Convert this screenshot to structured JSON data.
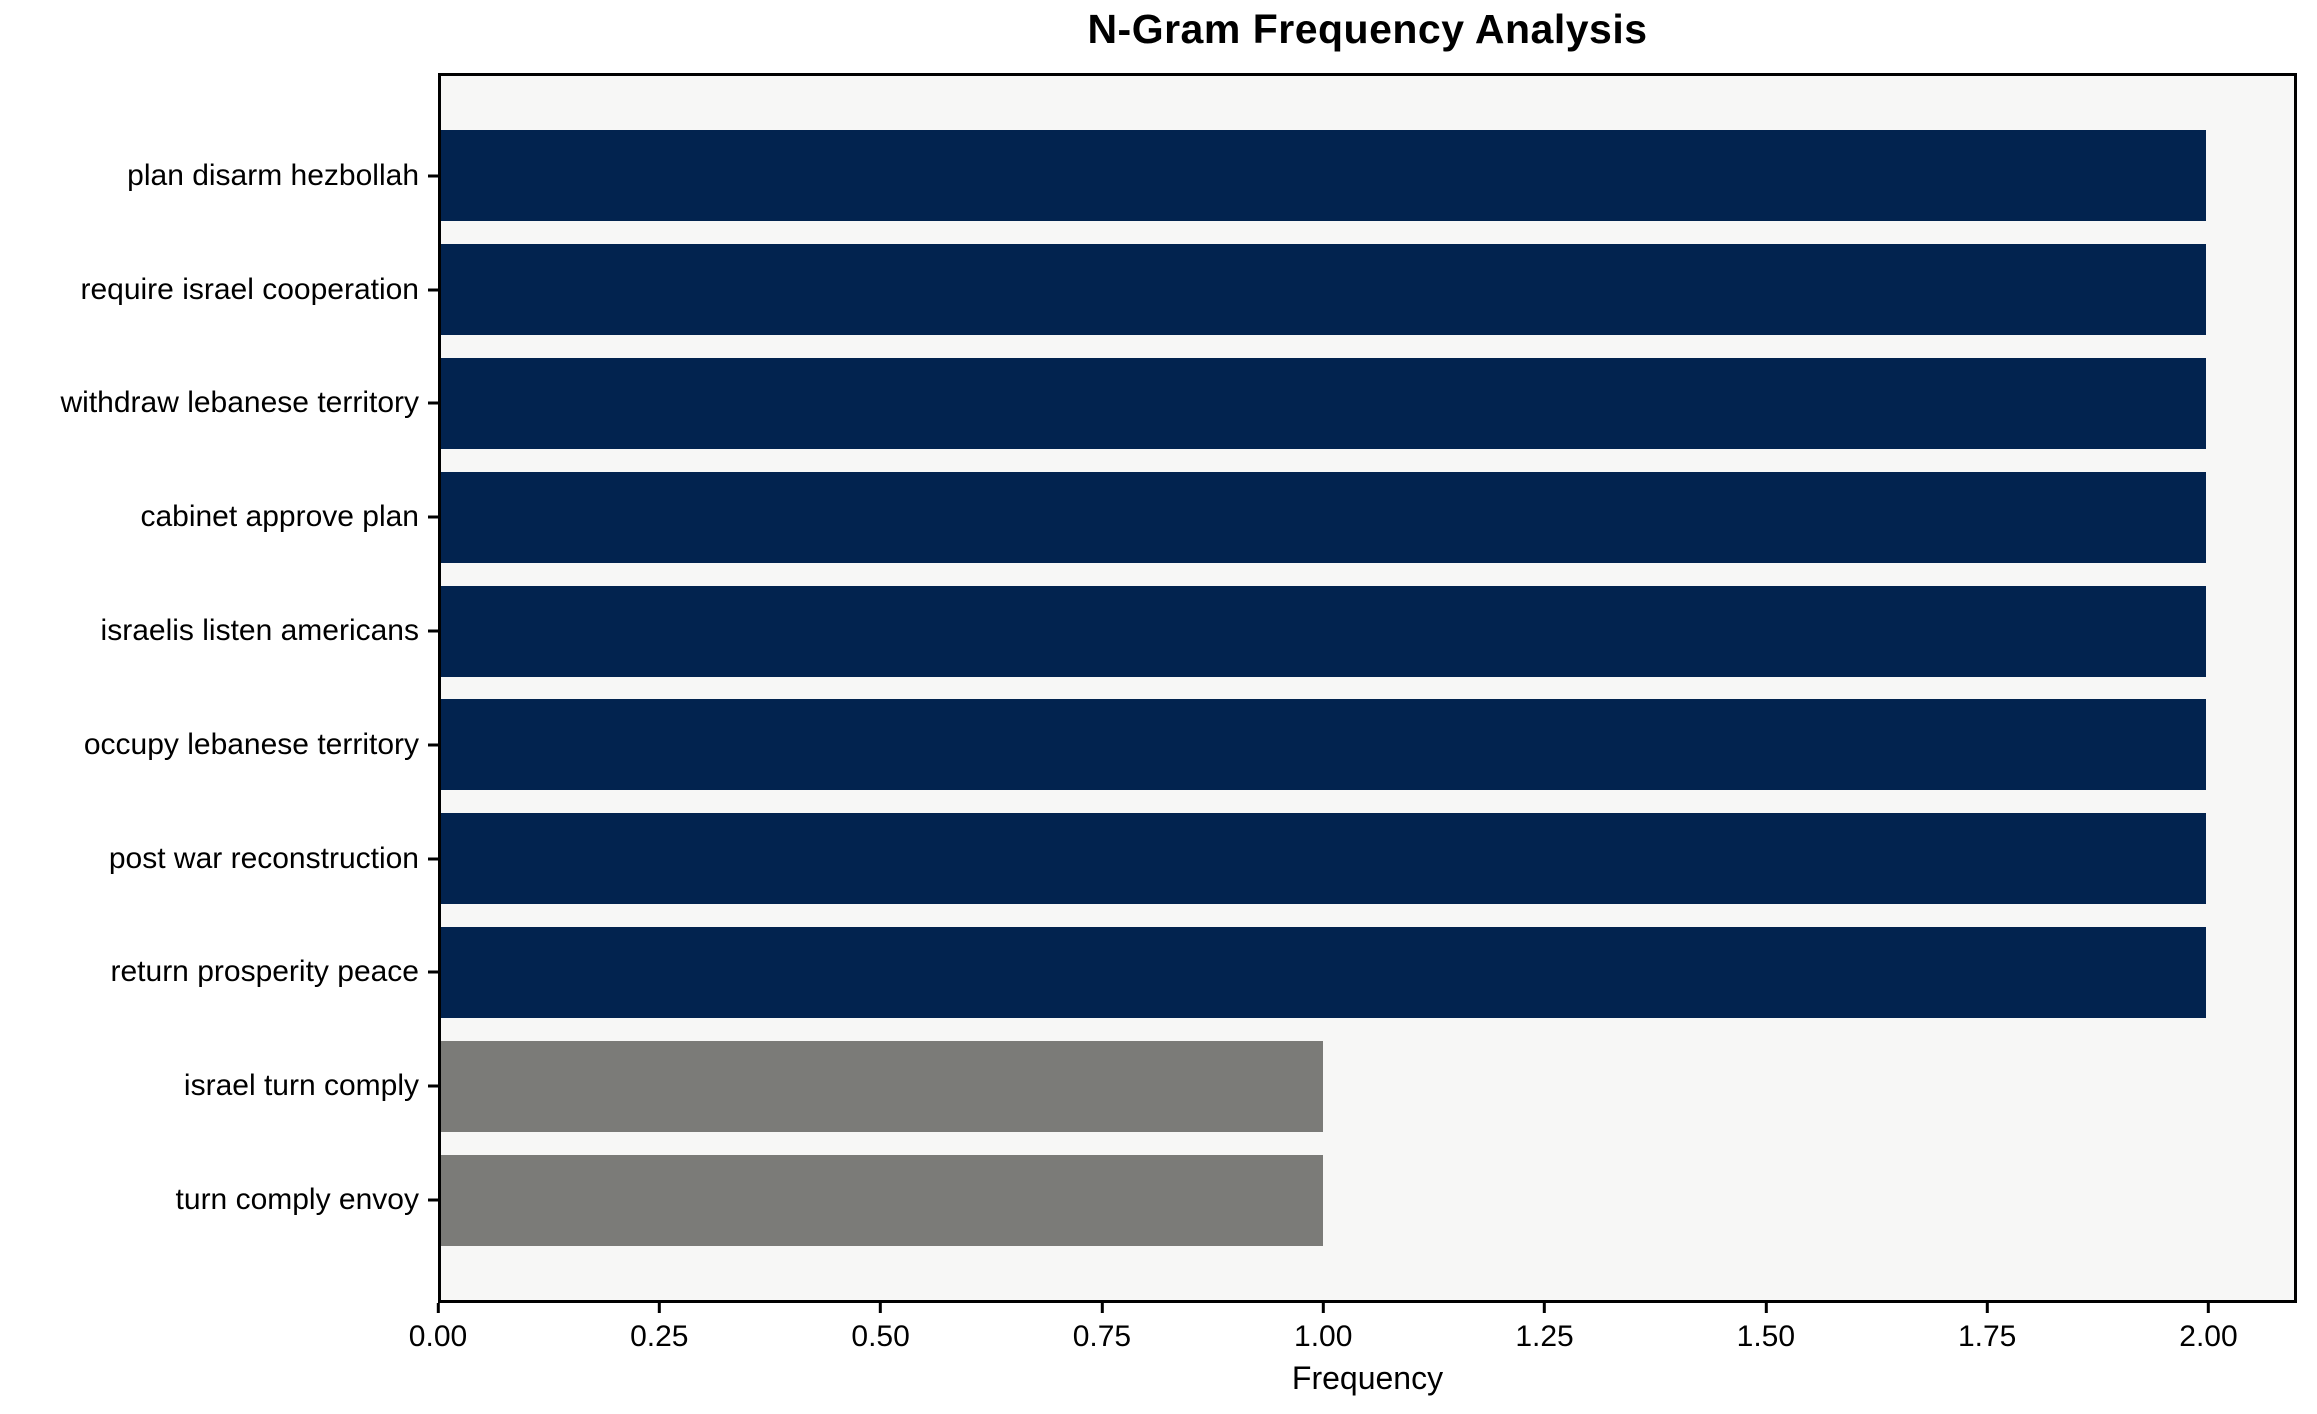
{
  "chart_data": {
    "type": "bar",
    "orientation": "horizontal",
    "title": "N-Gram Frequency Analysis",
    "xlabel": "Frequency",
    "ylabel": "",
    "categories": [
      "plan disarm hezbollah",
      "require israel cooperation",
      "withdraw lebanese territory",
      "cabinet approve plan",
      "israelis listen americans",
      "occupy lebanese territory",
      "post war reconstruction",
      "return prosperity peace",
      "israel turn comply",
      "turn comply envoy"
    ],
    "values": [
      2,
      2,
      2,
      2,
      2,
      2,
      2,
      2,
      1,
      1
    ],
    "bar_colors": [
      "#02234f",
      "#02234f",
      "#02234f",
      "#02234f",
      "#02234f",
      "#02234f",
      "#02234f",
      "#02234f",
      "#7b7b78",
      "#7b7b78"
    ],
    "xlim": [
      0,
      2.1
    ],
    "xticks": [
      {
        "value": 0.0,
        "label": "0.00"
      },
      {
        "value": 0.25,
        "label": "0.25"
      },
      {
        "value": 0.5,
        "label": "0.50"
      },
      {
        "value": 0.75,
        "label": "0.75"
      },
      {
        "value": 1.0,
        "label": "1.00"
      },
      {
        "value": 1.25,
        "label": "1.25"
      },
      {
        "value": 1.5,
        "label": "1.50"
      },
      {
        "value": 1.75,
        "label": "1.75"
      },
      {
        "value": 2.0,
        "label": "2.00"
      }
    ],
    "grid": false,
    "legend_position": "none",
    "colors": {
      "highlight_bar": "#02234f",
      "muted_bar": "#7b7b78",
      "plot_background": "#f7f7f6",
      "figure_background": "#ffffff",
      "spine": "#000000",
      "text": "#000000"
    }
  }
}
